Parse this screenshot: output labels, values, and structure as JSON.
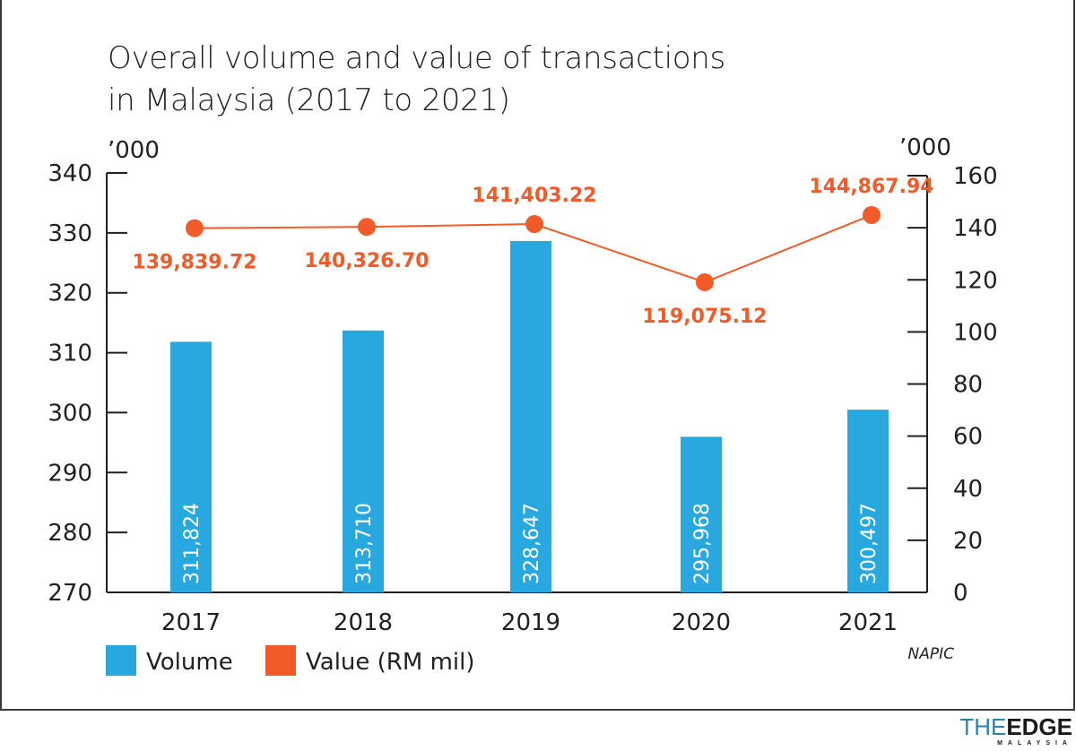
{
  "chart_data": {
    "type": "bar+line",
    "title": "Overall volume and value of transactions in Malaysia (2017 to 2021)",
    "title_lines": [
      "Overall volume and value of transactions",
      "in Malaysia (2017 to 2021)"
    ],
    "categories": [
      "2017",
      "2018",
      "2019",
      "2020",
      "2021"
    ],
    "left_axis": {
      "unit": "’000",
      "ylim": [
        270,
        340
      ],
      "ticks": [
        "270",
        "280",
        "290",
        "300",
        "310",
        "320",
        "330",
        "340"
      ]
    },
    "right_axis": {
      "unit": "’000",
      "ylim": [
        0,
        160
      ],
      "ticks": [
        "0",
        "20",
        "40",
        "60",
        "80",
        "100",
        "120",
        "140",
        "160"
      ]
    },
    "series": [
      {
        "name": "Volume",
        "type": "bar",
        "axis": "left",
        "color": "#29a8e0",
        "values": [
          311824,
          313710,
          328647,
          295968,
          300497
        ],
        "labels": [
          "311,824",
          "313,710",
          "328,647",
          "295,968",
          "300,497"
        ]
      },
      {
        "name": "Value (RM mil)",
        "type": "line",
        "axis": "right",
        "color": "#f15a29",
        "values": [
          139839.72,
          140326.7,
          141403.22,
          119075.12,
          144867.94
        ],
        "labels": [
          "139,839.72",
          "140,326.70",
          "141,403.22",
          "119,075.12",
          "144,867.94"
        ]
      }
    ],
    "legend": {
      "placement": "bottom-left",
      "items": [
        "Volume",
        "Value (RM mil)"
      ]
    },
    "source": "NAPIC",
    "grid": false
  },
  "branding": {
    "logo": "THE EDGE MALAYSIA"
  }
}
